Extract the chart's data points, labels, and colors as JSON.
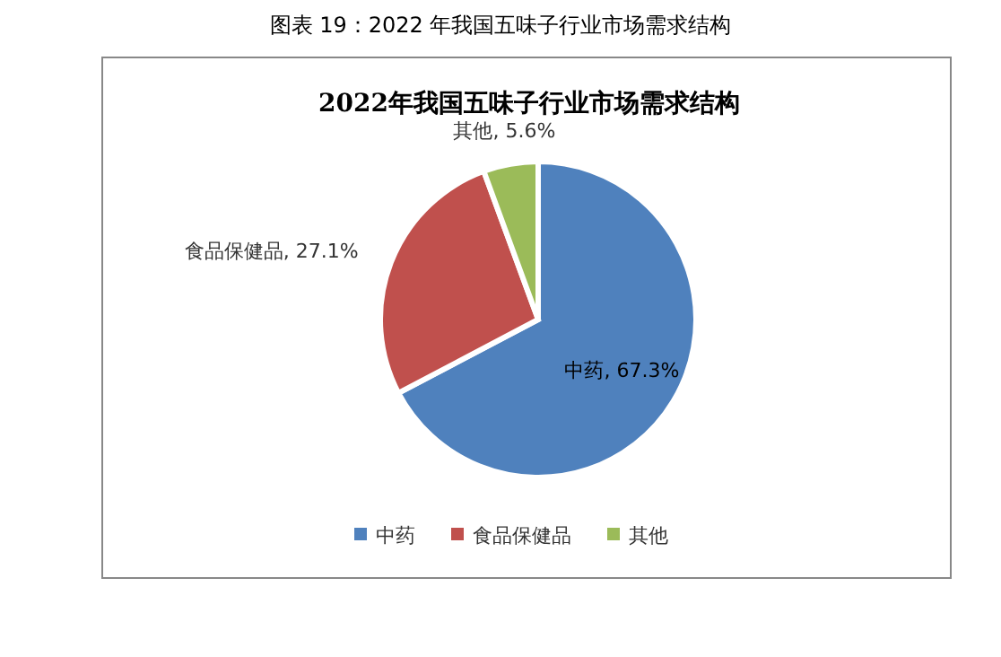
{
  "chart_data": {
    "type": "pie",
    "title": "2022年我国五味子行业市场需求结构",
    "annotations": [
      "图表 19：2022 年我国五味子行业市场需求结构"
    ],
    "categories": [
      "中药",
      "食品保健品",
      "其他"
    ],
    "values": [
      67.3,
      27.1,
      5.6
    ],
    "value_labels": [
      "中药, 67.3%",
      "食品保健品, 27.1%",
      "其他, 5.6%"
    ],
    "colors": [
      "#4f81bd",
      "#c0504d",
      "#9bbb59"
    ],
    "legend": "bottom"
  }
}
